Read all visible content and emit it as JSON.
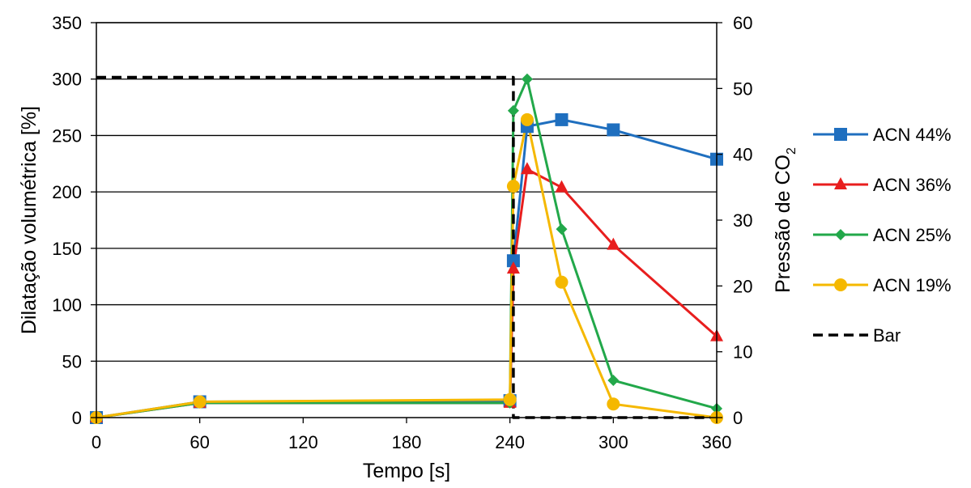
{
  "chart_data": {
    "type": "line",
    "xlabel": "Tempo [s]",
    "ylabel": "Dilatação volumétrica [%]",
    "y2label": "Pressão de CO",
    "y2label_sub": "2",
    "xlim": [
      0,
      360
    ],
    "ylim": [
      0,
      350
    ],
    "y2lim": [
      0,
      60
    ],
    "xticks": [
      "0",
      "60",
      "120",
      "180",
      "240",
      "300",
      "360"
    ],
    "yticks": [
      "0",
      "50",
      "100",
      "150",
      "200",
      "250",
      "300",
      "350"
    ],
    "y2ticks": [
      "0",
      "10",
      "20",
      "30",
      "40",
      "50",
      "60"
    ],
    "grid": "horizontal",
    "legend": "right",
    "series": [
      {
        "name": "ACN 44%",
        "color": "#1f6fbf",
        "marker": "square",
        "axis": "left",
        "x": [
          0,
          60,
          240,
          242,
          250,
          270,
          300,
          360
        ],
        "y": [
          0,
          14,
          15,
          139,
          258,
          264,
          255,
          229
        ]
      },
      {
        "name": "ACN 36%",
        "color": "#e81e1e",
        "marker": "triangle",
        "axis": "left",
        "x": [
          0,
          60,
          240,
          242,
          250,
          270,
          300,
          360
        ],
        "y": [
          0,
          13,
          13,
          132,
          220,
          204,
          153,
          72
        ]
      },
      {
        "name": "ACN 25%",
        "color": "#22a84a",
        "marker": "diamond",
        "axis": "left",
        "x": [
          0,
          60,
          240,
          242,
          250,
          270,
          300,
          360
        ],
        "y": [
          0,
          13,
          13,
          272,
          300,
          167,
          33,
          8
        ]
      },
      {
        "name": "ACN 19%",
        "color": "#f5b800",
        "marker": "circle",
        "axis": "left",
        "x": [
          0,
          60,
          240,
          242,
          250,
          270,
          300,
          360
        ],
        "y": [
          0,
          14,
          16,
          205,
          264,
          120,
          12,
          0
        ]
      },
      {
        "name": "Bar",
        "color": "#000000",
        "marker": "none",
        "dash": true,
        "axis": "right",
        "x": [
          0,
          240,
          242,
          242,
          360
        ],
        "y": [
          51.7,
          51.7,
          51.7,
          0,
          0
        ]
      }
    ]
  }
}
